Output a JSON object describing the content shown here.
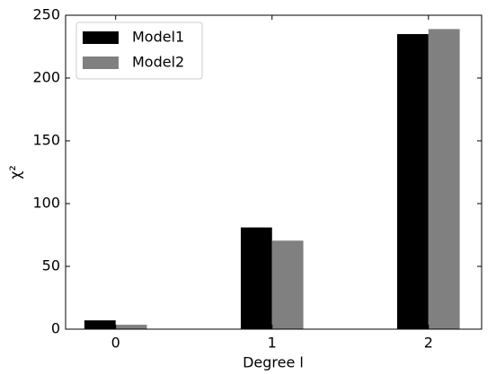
{
  "chart_data": {
    "type": "bar",
    "categories": [
      "0",
      "1",
      "2"
    ],
    "series": [
      {
        "name": "Model1",
        "color": "#000000",
        "values": [
          7,
          81,
          235
        ]
      },
      {
        "name": "Model2",
        "color": "#808080",
        "values": [
          3.5,
          70.5,
          239
        ]
      }
    ],
    "xlabel": "Degree l",
    "ylabel": "χ²",
    "ylim": [
      0,
      250
    ],
    "yticks": [
      0,
      50,
      100,
      150,
      200,
      250
    ],
    "legend": "upper left",
    "grid": false
  }
}
